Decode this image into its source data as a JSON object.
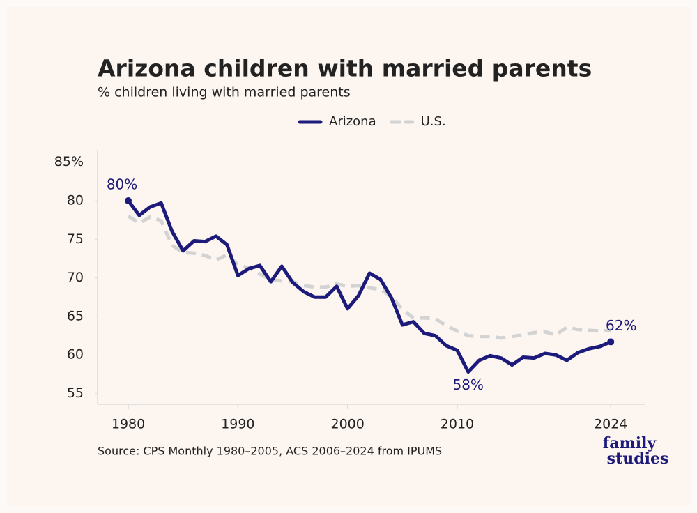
{
  "chart_data": {
    "type": "line",
    "title": "Arizona children with married parents",
    "subtitle": "% children living with married parents",
    "source": "Source: CPS Monthly 1980–2005, ACS 2006–2024 from IPUMS",
    "logo": [
      "family",
      "studies"
    ],
    "x": [
      1980,
      1981,
      1982,
      1983,
      1984,
      1985,
      1986,
      1987,
      1988,
      1989,
      1990,
      1991,
      1992,
      1993,
      1994,
      1995,
      1996,
      1997,
      1998,
      1999,
      2000,
      2001,
      2002,
      2003,
      2004,
      2005,
      2006,
      2007,
      2008,
      2009,
      2010,
      2011,
      2012,
      2013,
      2014,
      2015,
      2016,
      2017,
      2018,
      2019,
      2020,
      2021,
      2022,
      2023,
      2024
    ],
    "series": [
      {
        "name": "Arizona",
        "color": "#1c1a7a",
        "dashed": false,
        "values": [
          80.0,
          78.1,
          79.2,
          79.7,
          76.0,
          73.5,
          74.8,
          74.7,
          75.4,
          74.3,
          70.3,
          71.2,
          71.6,
          69.5,
          71.5,
          69.4,
          68.2,
          67.5,
          67.5,
          68.9,
          66.0,
          67.7,
          70.6,
          69.8,
          67.4,
          63.9,
          64.3,
          62.8,
          62.5,
          61.2,
          60.6,
          57.8,
          59.3,
          59.9,
          59.6,
          58.7,
          59.7,
          59.6,
          60.2,
          60.0,
          59.3,
          60.3,
          60.8,
          61.1,
          61.7
        ],
        "value_labels": [
          "80%",
          null,
          null,
          null,
          null,
          null,
          null,
          null,
          null,
          null,
          null,
          null,
          null,
          null,
          null,
          null,
          null,
          null,
          null,
          null,
          null,
          null,
          null,
          null,
          null,
          null,
          null,
          null,
          null,
          null,
          null,
          "58%",
          null,
          null,
          null,
          null,
          null,
          null,
          null,
          null,
          null,
          null,
          null,
          null,
          "62%"
        ]
      },
      {
        "name": "U.S.",
        "color": "#d3d3d3",
        "dashed": true,
        "values": [
          78.0,
          77.1,
          77.9,
          77.4,
          74.2,
          73.3,
          73.2,
          72.9,
          72.3,
          73.0,
          71.7,
          71.3,
          70.5,
          69.8,
          69.6,
          69.5,
          69.0,
          68.8,
          68.8,
          69.2,
          68.9,
          69.0,
          68.7,
          68.5,
          67.6,
          65.9,
          64.8,
          64.8,
          64.7,
          63.8,
          63.1,
          62.5,
          62.4,
          62.4,
          62.2,
          62.4,
          62.6,
          62.9,
          63.0,
          62.6,
          63.6,
          63.3,
          63.2,
          63.1,
          63.2
        ]
      }
    ],
    "xlim": [
      1977.2,
      2027.1
    ],
    "xticks": [
      1980,
      1990,
      2000,
      2010,
      2024
    ],
    "ylim": [
      53.6,
      86.6
    ],
    "yticks": [
      {
        "value": 85,
        "label": "85%"
      },
      80,
      75,
      70,
      65,
      60,
      55
    ],
    "grid": false,
    "legend": "top"
  }
}
